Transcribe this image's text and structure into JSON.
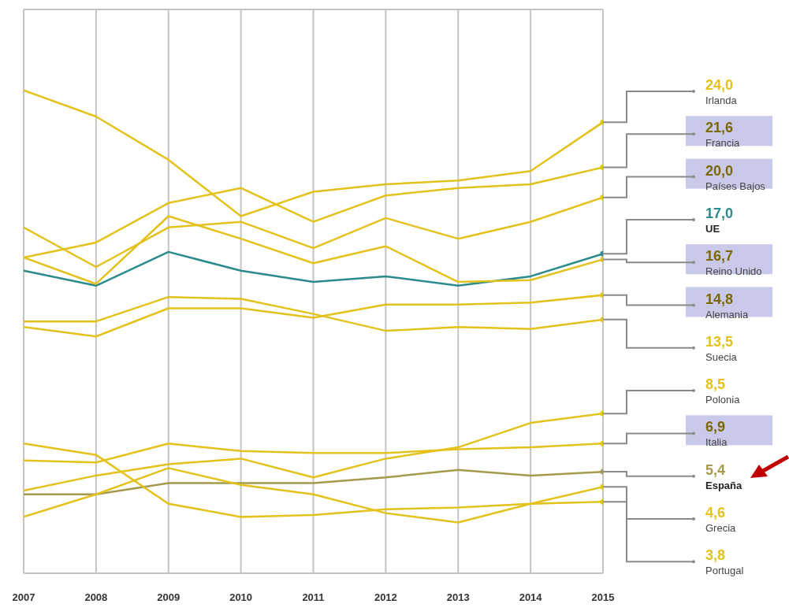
{
  "chart_data": {
    "type": "line",
    "x": [
      2007,
      2008,
      2009,
      2010,
      2011,
      2012,
      2013,
      2014,
      2015
    ],
    "xlim": [
      2007,
      2015
    ],
    "xticks": [
      2007,
      2008,
      2009,
      2010,
      2011,
      2012,
      2013,
      2014,
      2015
    ],
    "ylim": [
      0,
      30
    ],
    "tick_labels": "x",
    "grid": true,
    "series": [
      {
        "name": "Irlanda",
        "color": "#e3c21c",
        "values": [
          25.7,
          24.3,
          22.0,
          19.0,
          20.3,
          20.7,
          20.9,
          21.4,
          24.0
        ],
        "value_labels": [
          null,
          null,
          null,
          null,
          null,
          null,
          null,
          null,
          "24,0"
        ]
      },
      {
        "name": "Francia",
        "color": "#e3c21c",
        "values": [
          16.8,
          17.6,
          19.7,
          20.5,
          18.7,
          20.1,
          20.5,
          20.7,
          21.6
        ],
        "value_labels": [
          null,
          null,
          null,
          null,
          null,
          null,
          null,
          null,
          "21,6"
        ]
      },
      {
        "name": "Países Bajos",
        "color": "#e3c21c",
        "values": [
          18.4,
          16.3,
          18.4,
          18.7,
          17.3,
          18.9,
          17.8,
          18.7,
          20.0
        ],
        "value_labels": [
          null,
          null,
          null,
          null,
          null,
          null,
          null,
          null,
          "20,0"
        ]
      },
      {
        "name": "UE",
        "color": "#2b8a8c",
        "values": [
          16.1,
          15.3,
          17.1,
          16.1,
          15.5,
          15.8,
          15.3,
          15.8,
          17.0
        ],
        "value_labels": [
          null,
          null,
          null,
          null,
          null,
          null,
          null,
          null,
          "17,0"
        ]
      },
      {
        "name": "Reino Unido",
        "color": "#e3c21c",
        "values": [
          16.8,
          15.4,
          19.0,
          17.8,
          16.5,
          17.4,
          15.5,
          15.6,
          16.7
        ],
        "value_labels": [
          null,
          null,
          null,
          null,
          null,
          null,
          null,
          null,
          "16,7"
        ]
      },
      {
        "name": "Alemania",
        "color": "#e3c21c",
        "values": [
          13.1,
          12.6,
          14.1,
          14.1,
          13.6,
          14.3,
          14.3,
          14.4,
          14.8
        ],
        "value_labels": [
          null,
          null,
          null,
          null,
          null,
          null,
          null,
          null,
          "14,8"
        ]
      },
      {
        "name": "Suecia",
        "color": "#e3c21c",
        "values": [
          13.4,
          13.4,
          14.7,
          14.6,
          13.8,
          12.9,
          13.1,
          13.0,
          13.5
        ],
        "value_labels": [
          null,
          null,
          null,
          null,
          null,
          null,
          null,
          null,
          "13,5"
        ]
      },
      {
        "name": "Polonia",
        "color": "#e3c21c",
        "values": [
          4.4,
          5.2,
          5.8,
          6.1,
          5.1,
          6.1,
          6.7,
          8.0,
          8.5
        ],
        "value_labels": [
          null,
          null,
          null,
          null,
          null,
          null,
          null,
          null,
          "8,5"
        ]
      },
      {
        "name": "Italia",
        "color": "#e3c21c",
        "values": [
          6.0,
          5.9,
          6.9,
          6.5,
          6.4,
          6.4,
          6.6,
          6.7,
          6.9
        ],
        "value_labels": [
          null,
          null,
          null,
          null,
          null,
          null,
          null,
          null,
          "6,9"
        ]
      },
      {
        "name": "España",
        "color": "#a39a4c",
        "values": [
          4.2,
          4.2,
          4.8,
          4.8,
          4.8,
          5.1,
          5.5,
          5.2,
          5.4
        ],
        "value_labels": [
          null,
          null,
          null,
          null,
          null,
          null,
          null,
          null,
          "5,4"
        ]
      },
      {
        "name": "Grecia",
        "color": "#e3c21c",
        "values": [
          3.0,
          4.2,
          5.6,
          4.7,
          4.2,
          3.2,
          2.7,
          3.7,
          4.6
        ],
        "value_labels": [
          null,
          null,
          null,
          null,
          null,
          null,
          null,
          null,
          "4,6"
        ]
      },
      {
        "name": "Portugal",
        "color": "#e3c21c",
        "values": [
          6.9,
          6.3,
          3.7,
          3.0,
          3.1,
          3.4,
          3.5,
          3.7,
          3.8
        ],
        "value_labels": [
          null,
          null,
          null,
          null,
          null,
          null,
          null,
          null,
          "3,8"
        ]
      }
    ]
  }
}
